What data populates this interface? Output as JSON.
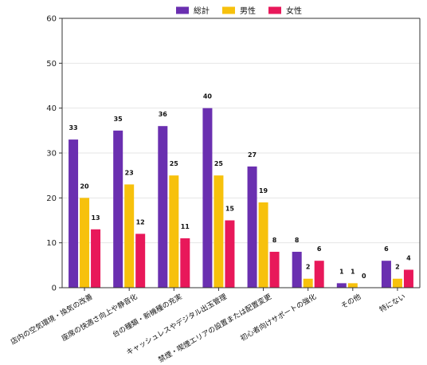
{
  "chart_data": {
    "type": "bar",
    "categories": [
      "店内の空気環境・換気の改善",
      "座席の快適さ向上や静音化",
      "台の種類・新機種の充実",
      "キャッシュレスやデジタル出玉管理",
      "禁煙・喫煙エリアの設置または配置変更",
      "初心者向けサポートの強化",
      "その他",
      "特にない"
    ],
    "series": [
      {
        "name": "総計",
        "color": "#6a2fb0",
        "values": [
          33,
          35,
          36,
          40,
          27,
          8,
          1,
          6
        ]
      },
      {
        "name": "男性",
        "color": "#f7c10c",
        "values": [
          20,
          23,
          25,
          25,
          19,
          2,
          1,
          2
        ]
      },
      {
        "name": "女性",
        "color": "#e8185a",
        "values": [
          13,
          12,
          11,
          15,
          8,
          6,
          0,
          4
        ]
      }
    ],
    "ylim": [
      0,
      60
    ],
    "yticks": [
      0,
      10,
      20,
      30,
      40,
      50,
      60
    ],
    "grid": true,
    "legend": "top-center"
  }
}
